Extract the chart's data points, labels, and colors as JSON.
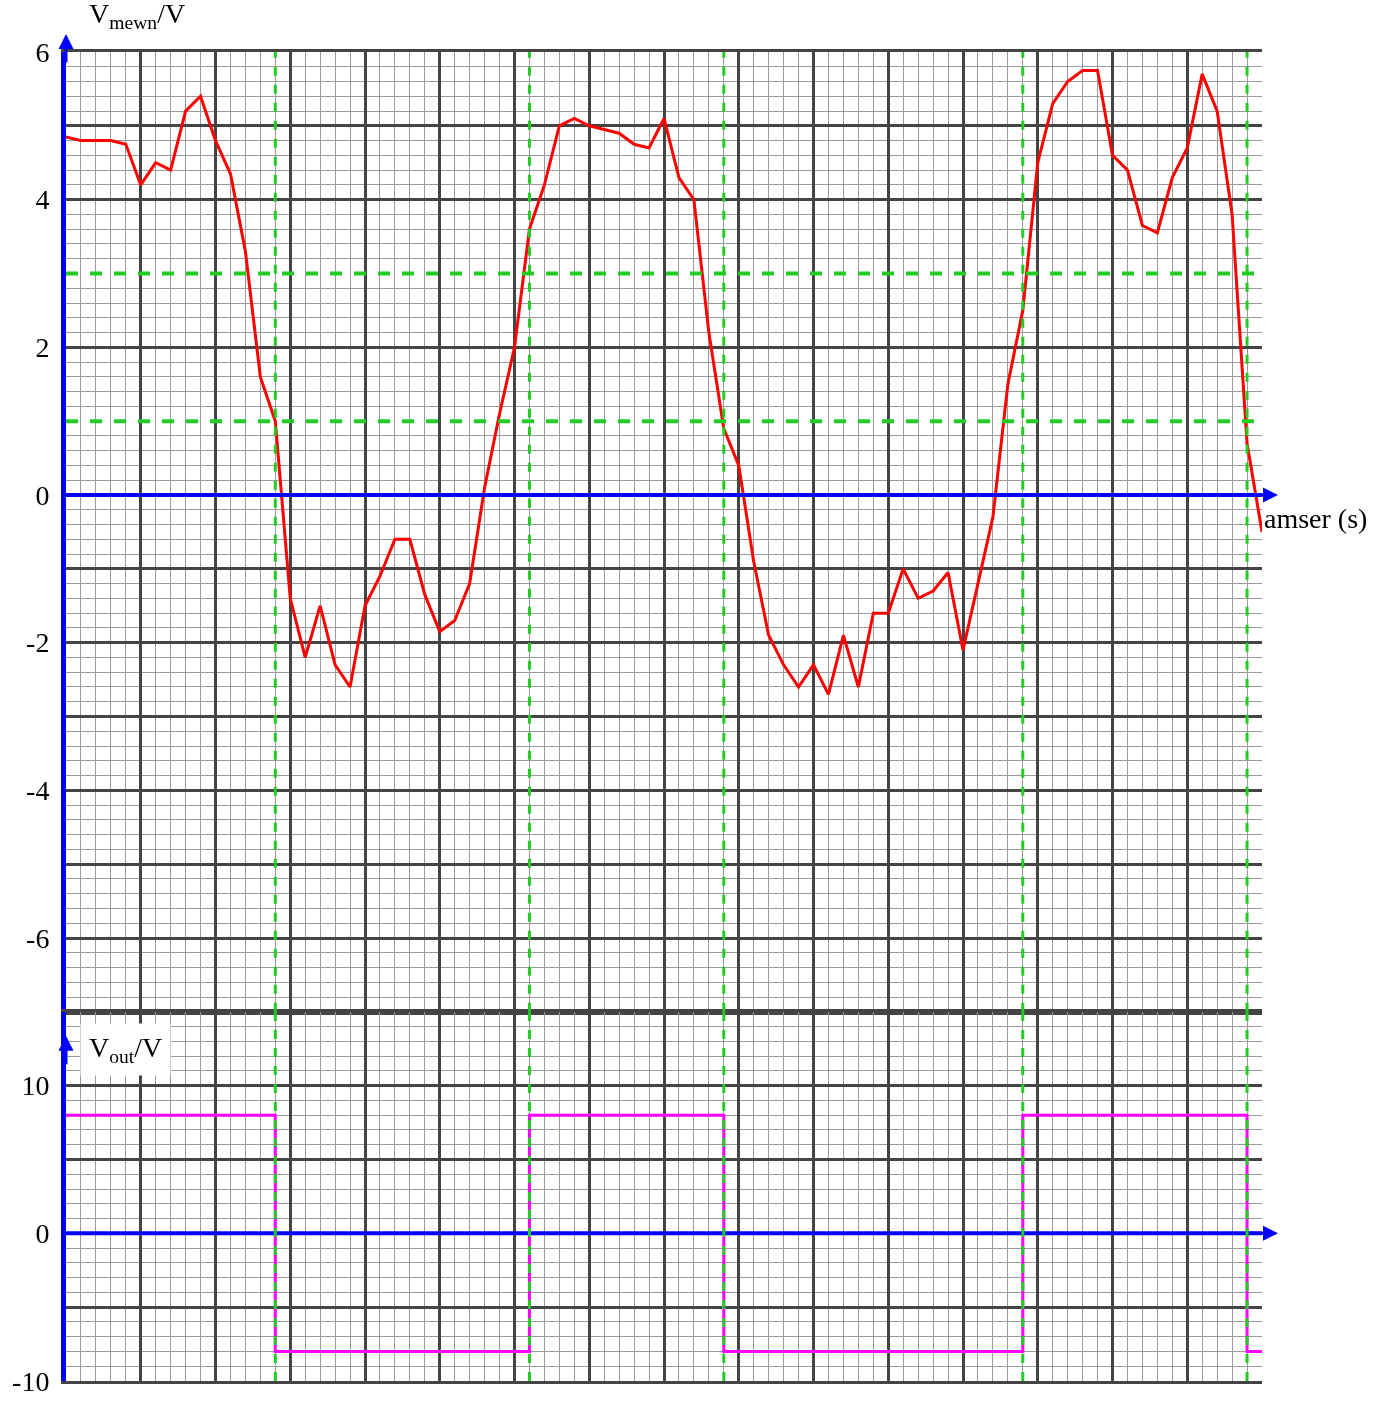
{
  "chart_data": [
    {
      "type": "line",
      "ylabel": "V$_{mewn}$/V",
      "xlabel": "amser (s)",
      "categories": [
        null,
        null,
        null,
        null,
        null,
        null,
        null,
        null,
        null,
        null,
        null,
        null,
        null,
        null,
        null,
        null,
        null,
        null,
        null,
        null,
        null,
        null,
        null,
        null,
        null,
        null,
        null,
        null,
        null,
        null,
        null,
        null,
        null,
        null,
        null,
        null,
        null,
        null,
        null,
        null,
        null,
        null,
        null,
        null,
        null,
        null,
        null,
        null,
        null,
        null,
        null,
        null,
        null,
        null,
        null,
        null,
        null,
        null,
        null,
        null,
        null,
        null,
        null,
        null,
        null,
        null,
        null,
        null,
        null,
        null,
        null,
        null,
        null,
        null,
        null,
        null,
        null,
        null,
        null,
        null,
        null
      ],
      "series": [
        {
          "color": "#ff0000",
          "values": [
            4.85,
            4.8,
            4.8,
            4.8,
            4.75,
            4.2,
            4.5,
            4.4,
            5.2,
            5.4,
            4.8,
            4.35,
            3.3,
            1.6,
            1.0,
            -1.4,
            -2.2,
            -1.5,
            -2.3,
            -2.6,
            -1.5,
            -1.1,
            -0.6,
            -0.6,
            -1.35,
            -1.85,
            -1.7,
            -1.2,
            0.1,
            1.1,
            2.0,
            3.6,
            4.2,
            5.0,
            5.1,
            5.0,
            4.95,
            4.9,
            4.75,
            4.7,
            5.1,
            4.3,
            4.0,
            2.2,
            0.9,
            0.4,
            -0.9,
            -1.9,
            -2.3,
            -2.6,
            -2.3,
            -2.7,
            -1.9,
            -2.6,
            -1.6,
            -1.6,
            -1.0,
            -1.4,
            -1.3,
            -1.05,
            -2.1,
            -1.2,
            -0.3,
            1.5,
            2.5,
            4.5,
            5.3,
            5.6,
            5.75,
            5.75,
            4.6,
            4.4,
            3.65,
            3.55,
            4.3,
            4.7,
            5.7,
            5.2,
            3.8,
            0.7,
            -0.5
          ]
        }
      ],
      "ylim": [
        -7,
        6
      ],
      "yticks": [
        -6,
        {
          "value": -5,
          "label": null
        },
        -4,
        {
          "value": -3,
          "label": null
        },
        -2,
        {
          "value": -1,
          "label": null
        },
        0,
        2,
        4,
        {
          "value": 5,
          "label": null
        },
        6
      ],
      "ref_lines": [
        {
          "axis": "y",
          "value": 3,
          "color": "#22cc22",
          "line_style": "dashed"
        },
        {
          "axis": "y",
          "value": 1,
          "color": "#22cc22",
          "line_style": "dashed"
        },
        {
          "axis": "y",
          "value": 0,
          "color": "#0000ff",
          "line_style": "solid"
        }
      ],
      "grid": true,
      "tick_labels": "y",
      "marker": "none"
    },
    {
      "type": "step",
      "ylabel": "V$_{out}$/V",
      "categories": [
        null,
        null,
        null,
        null,
        null,
        null,
        null,
        null,
        null,
        null,
        null,
        null,
        null,
        null,
        null,
        null,
        null,
        null,
        null,
        null,
        null,
        null,
        null,
        null,
        null,
        null,
        null,
        null,
        null,
        null,
        null,
        null,
        null,
        null,
        null,
        null,
        null,
        null,
        null,
        null,
        null,
        null,
        null,
        null,
        null,
        null,
        null,
        null,
        null,
        null,
        null,
        null,
        null,
        null,
        null,
        null,
        null,
        null,
        null,
        null,
        null,
        null,
        null,
        null,
        null,
        null,
        null,
        null,
        null,
        null,
        null,
        null,
        null,
        null,
        null,
        null,
        null,
        null,
        null,
        null,
        null
      ],
      "series": [
        {
          "color": "#ff00ff",
          "values": [
            8,
            8,
            8,
            8,
            8,
            8,
            8,
            8,
            8,
            8,
            8,
            8,
            8,
            8,
            -8,
            -8,
            -8,
            -8,
            -8,
            -8,
            -8,
            -8,
            -8,
            -8,
            -8,
            -8,
            -8,
            -8,
            -8,
            -8,
            -8,
            8,
            8,
            8,
            8,
            8,
            8,
            8,
            8,
            8,
            8,
            8,
            8,
            8,
            -8,
            -8,
            -8,
            -8,
            -8,
            -8,
            -8,
            -8,
            -8,
            -8,
            -8,
            -8,
            -8,
            -8,
            -8,
            -8,
            -8,
            -8,
            -8,
            -8,
            8,
            8,
            8,
            8,
            8,
            8,
            8,
            8,
            8,
            8,
            8,
            8,
            8,
            8,
            8,
            -8,
            -8
          ]
        }
      ],
      "ylim": [
        -10,
        15
      ],
      "yticks": [
        -10,
        {
          "value": -5,
          "label": null
        },
        0,
        {
          "value": 5,
          "label": null
        },
        10
      ],
      "ref_lines": [
        {
          "axis": "y",
          "value": 0,
          "color": "#0000ff",
          "line_style": "solid"
        }
      ],
      "grid": true,
      "tick_labels": "y",
      "marker": "none"
    }
  ]
}
